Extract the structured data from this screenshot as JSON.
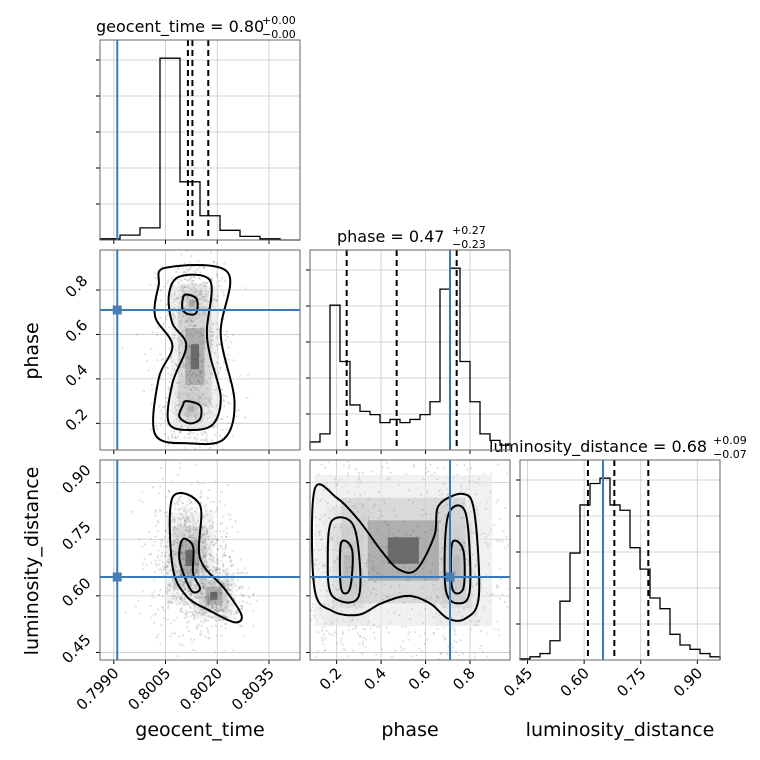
{
  "chart_data": {
    "type": "corner",
    "parameters": [
      "geocent_time",
      "phase",
      "luminosity_distance"
    ],
    "axis_labels": {
      "geocent_time": "geocent_time",
      "phase": "phase",
      "luminosity_distance": "luminosity_distance"
    },
    "titles": [
      {
        "parameter": "geocent_time",
        "text": "geocent_time = 0.80",
        "sup": "+0.00",
        "sub": "−0.00"
      },
      {
        "parameter": "phase",
        "text": "phase = 0.47",
        "sup": "+0.27",
        "sub": "−0.23"
      },
      {
        "parameter": "luminosity_distance",
        "text": "luminosity_distance = 0.68",
        "sup": "+0.09",
        "sub": "−0.07"
      }
    ],
    "ranges": {
      "geocent_time": [
        0.7986,
        0.8044
      ],
      "phase": [
        0.08,
        0.98
      ],
      "luminosity_distance": [
        0.43,
        0.96
      ]
    },
    "ticks": {
      "geocent_time": [
        "0.7990",
        "0.8005",
        "0.8020",
        "0.8035"
      ],
      "phase_x": [
        "0.2",
        "0.4",
        "0.6",
        "0.8"
      ],
      "phase_y": [
        "0.2",
        "0.4",
        "0.6",
        "0.8"
      ],
      "luminosity_distance": [
        "0.45",
        "0.60",
        "0.75",
        "0.90"
      ]
    },
    "truths": {
      "geocent_time": 0.7991,
      "phase": 0.71,
      "luminosity_distance": 0.65
    },
    "quantiles": {
      "geocent_time": [
        0.80115,
        0.80128,
        0.80174
      ],
      "phase": [
        0.245,
        0.47,
        0.74
      ],
      "luminosity_distance": [
        0.61,
        0.68,
        0.77
      ]
    },
    "histograms": {
      "geocent_time": {
        "edges": [
          0.7986,
          0.79918,
          0.79976,
          0.80034,
          0.80092,
          0.8015,
          0.80208,
          0.80266,
          0.80324,
          0.80382,
          0.8044
        ],
        "counts": [
          1,
          4,
          10,
          150,
          48,
          20,
          8,
          3,
          1,
          0
        ]
      },
      "phase": {
        "edges": [
          0.08,
          0.125,
          0.17,
          0.215,
          0.26,
          0.305,
          0.35,
          0.395,
          0.44,
          0.485,
          0.53,
          0.575,
          0.62,
          0.665,
          0.71,
          0.755,
          0.8,
          0.845,
          0.89,
          0.935,
          0.98
        ],
        "counts": [
          5,
          10,
          90,
          55,
          28,
          24,
          22,
          17,
          19,
          17,
          19,
          22,
          30,
          100,
          113,
          55,
          30,
          10,
          6,
          3
        ]
      },
      "luminosity_distance": {
        "edges": [
          0.43,
          0.4565,
          0.483,
          0.5095,
          0.536,
          0.5625,
          0.589,
          0.6155,
          0.642,
          0.6685,
          0.695,
          0.7215,
          0.748,
          0.7745,
          0.801,
          0.8275,
          0.854,
          0.8805,
          0.907,
          0.9335,
          0.96
        ],
        "counts": [
          1,
          3,
          6,
          18,
          55,
          100,
          145,
          165,
          170,
          145,
          140,
          105,
          85,
          58,
          48,
          24,
          14,
          10,
          6,
          3
        ]
      }
    },
    "pairs": [
      {
        "x": "geocent_time",
        "y": "phase",
        "clusters": [
          {
            "cx": 0.80128,
            "cy": 0.74,
            "sx": 0.00022,
            "sy": 0.045,
            "n": 420
          },
          {
            "cx": 0.80125,
            "cy": 0.27,
            "sx": 0.00025,
            "sy": 0.05,
            "n": 380
          },
          {
            "cx": 0.80135,
            "cy": 0.5,
            "sx": 0.00035,
            "sy": 0.16,
            "n": 500
          }
        ],
        "contours": [
          [
            [
              0.8011,
              0.78
            ],
            [
              0.8014,
              0.76
            ],
            [
              0.8014,
              0.7
            ],
            [
              0.8012,
              0.69
            ],
            [
              0.801,
              0.71
            ],
            [
              0.801,
              0.76
            ]
          ],
          [
            [
              0.8009,
              0.86
            ],
            [
              0.8018,
              0.84
            ],
            [
              0.8017,
              0.62
            ],
            [
              0.8018,
              0.5
            ],
            [
              0.8021,
              0.32
            ],
            [
              0.8019,
              0.2
            ],
            [
              0.8013,
              0.17
            ],
            [
              0.8006,
              0.2
            ],
            [
              0.8007,
              0.38
            ],
            [
              0.8011,
              0.55
            ],
            [
              0.8007,
              0.65
            ],
            [
              0.8006,
              0.78
            ]
          ],
          [
            [
              0.8011,
              0.3
            ],
            [
              0.8015,
              0.28
            ],
            [
              0.8015,
              0.22
            ],
            [
              0.8012,
              0.2
            ],
            [
              0.8009,
              0.23
            ],
            [
              0.801,
              0.28
            ]
          ],
          [
            [
              0.8005,
              0.9
            ],
            [
              0.8023,
              0.88
            ],
            [
              0.8021,
              0.6
            ],
            [
              0.8025,
              0.3
            ],
            [
              0.8022,
              0.13
            ],
            [
              0.8012,
              0.11
            ],
            [
              0.8002,
              0.15
            ],
            [
              0.8003,
              0.4
            ],
            [
              0.8007,
              0.55
            ],
            [
              0.8002,
              0.68
            ],
            [
              0.8003,
              0.82
            ]
          ]
        ]
      },
      {
        "x": "geocent_time",
        "y": "luminosity_distance",
        "clusters": [
          {
            "cx": 0.8012,
            "cy": 0.7,
            "sx": 0.00035,
            "sy": 0.06,
            "n": 900
          },
          {
            "cx": 0.8019,
            "cy": 0.6,
            "sx": 0.0003,
            "sy": 0.03,
            "n": 350
          }
        ],
        "contours": [
          [
            [
              0.801,
              0.75
            ],
            [
              0.8013,
              0.73
            ],
            [
              0.8013,
              0.66
            ],
            [
              0.8015,
              0.62
            ],
            [
              0.8013,
              0.61
            ],
            [
              0.8011,
              0.64
            ],
            [
              0.8009,
              0.7
            ]
          ],
          [
            [
              0.8007,
              0.86
            ],
            [
              0.8015,
              0.84
            ],
            [
              0.8015,
              0.7
            ],
            [
              0.8022,
              0.62
            ],
            [
              0.8027,
              0.55
            ],
            [
              0.8025,
              0.53
            ],
            [
              0.8018,
              0.56
            ],
            [
              0.8011,
              0.6
            ],
            [
              0.8007,
              0.68
            ]
          ]
        ]
      },
      {
        "x": "phase",
        "y": "luminosity_distance",
        "clusters": [
          {
            "cx": 0.25,
            "cy": 0.68,
            "sx": 0.05,
            "sy": 0.08,
            "n": 500
          },
          {
            "cx": 0.74,
            "cy": 0.68,
            "sx": 0.05,
            "sy": 0.08,
            "n": 520
          },
          {
            "cx": 0.5,
            "cy": 0.72,
            "sx": 0.2,
            "sy": 0.1,
            "n": 450
          }
        ],
        "contours": [
          [
            [
              0.22,
              0.74
            ],
            [
              0.27,
              0.72
            ],
            [
              0.26,
              0.62
            ],
            [
              0.22,
              0.62
            ]
          ],
          [
            [
              0.1,
              0.88
            ],
            [
              0.2,
              0.86
            ],
            [
              0.3,
              0.8
            ],
            [
              0.4,
              0.72
            ],
            [
              0.48,
              0.67
            ],
            [
              0.56,
              0.67
            ],
            [
              0.64,
              0.76
            ],
            [
              0.66,
              0.84
            ],
            [
              0.77,
              0.87
            ],
            [
              0.82,
              0.82
            ],
            [
              0.84,
              0.6
            ],
            [
              0.78,
              0.54
            ],
            [
              0.7,
              0.54
            ],
            [
              0.62,
              0.58
            ],
            [
              0.52,
              0.6
            ],
            [
              0.4,
              0.58
            ],
            [
              0.3,
              0.55
            ],
            [
              0.18,
              0.56
            ],
            [
              0.1,
              0.62
            ]
          ],
          [
            [
              0.18,
              0.8
            ],
            [
              0.28,
              0.78
            ],
            [
              0.3,
              0.6
            ],
            [
              0.18,
              0.6
            ],
            [
              0.16,
              0.7
            ]
          ],
          [
            [
              0.7,
              0.81
            ],
            [
              0.78,
              0.82
            ],
            [
              0.8,
              0.62
            ],
            [
              0.75,
              0.58
            ],
            [
              0.69,
              0.62
            ]
          ],
          [
            [
              0.72,
              0.74
            ],
            [
              0.77,
              0.72
            ],
            [
              0.77,
              0.62
            ],
            [
              0.72,
              0.62
            ]
          ]
        ]
      }
    ],
    "grid": true
  }
}
